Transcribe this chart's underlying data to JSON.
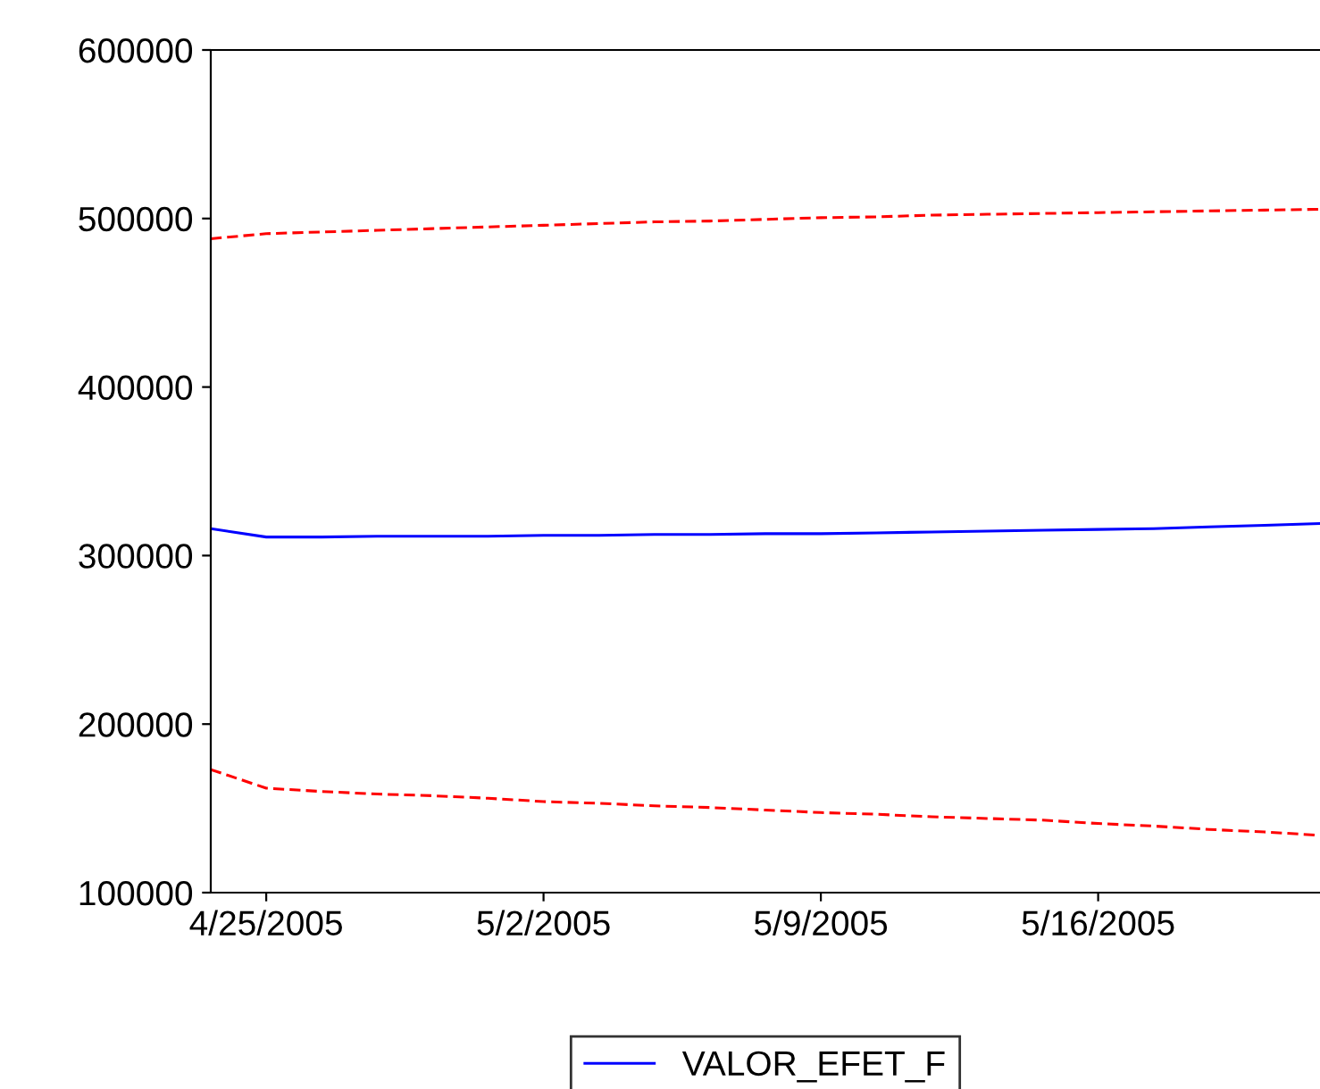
{
  "chart_data": {
    "type": "line",
    "categories": [
      null,
      "4/25/2005",
      null,
      null,
      null,
      null,
      "5/2/2005",
      null,
      null,
      null,
      null,
      "5/9/2005",
      null,
      null,
      null,
      null,
      "5/16/2005",
      null,
      null,
      null,
      null
    ],
    "series": [
      {
        "name": "VALOR_EFET_F",
        "color": "#0000ff",
        "line_style": "solid",
        "values": [
          316000,
          311000,
          311000,
          311500,
          311500,
          311500,
          312000,
          312000,
          312500,
          312500,
          313000,
          313000,
          313500,
          314000,
          314500,
          315000,
          315500,
          316000,
          317000,
          318000,
          319000
        ]
      },
      {
        "color": "#ff0000",
        "line_style": "dashed",
        "values": [
          488000,
          491000,
          492000,
          493000,
          494000,
          495000,
          496000,
          497000,
          498000,
          498500,
          499500,
          500500,
          501000,
          502000,
          502500,
          503000,
          503500,
          504000,
          504500,
          505000,
          505500
        ]
      },
      {
        "color": "#ff0000",
        "line_style": "dashed",
        "values": [
          173000,
          162000,
          160000,
          158500,
          157500,
          156000,
          154000,
          153000,
          151500,
          150500,
          149000,
          147500,
          146500,
          145000,
          144000,
          143000,
          141000,
          139500,
          137500,
          136000,
          134000
        ]
      }
    ],
    "ylim": [
      100000,
      600000
    ],
    "yticks": [
      100000,
      200000,
      300000,
      400000,
      500000,
      600000
    ],
    "grid": false,
    "legend": "bottom"
  }
}
